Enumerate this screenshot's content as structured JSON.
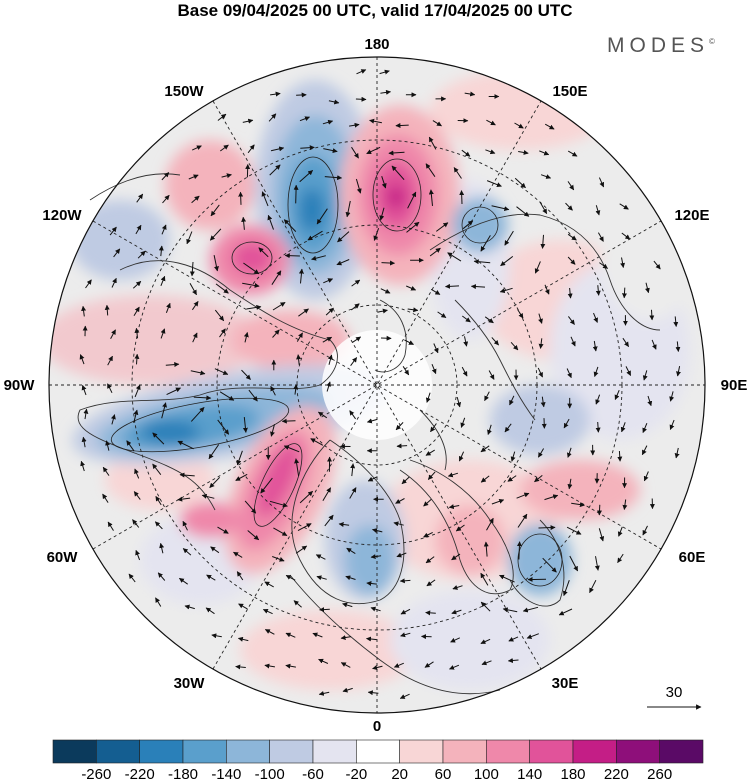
{
  "title": "Base 09/04/2025 00 UTC, valid 17/04/2025 00 UTC",
  "brand": "MODES",
  "brand_mark": "©",
  "longitude_labels": [
    "180",
    "150E",
    "120E",
    "90E",
    "60E",
    "30E",
    "0",
    "30W",
    "60W",
    "90W",
    "120W",
    "150W"
  ],
  "reference_vector": {
    "label": "30"
  },
  "colorbar": {
    "ticks": [
      "-260",
      "-220",
      "-180",
      "-140",
      "-100",
      "-60",
      "-20",
      "20",
      "60",
      "100",
      "140",
      "180",
      "220",
      "260"
    ],
    "colors": [
      "#0b3a5c",
      "#145e91",
      "#2a80b9",
      "#5a9fcc",
      "#8db6d9",
      "#bfcbe3",
      "#e4e4f0",
      "#ffffff",
      "#f8d6d6",
      "#f4b3bc",
      "#ef88aa",
      "#e1539a",
      "#c41e86",
      "#8e0f7a",
      "#5a0a66"
    ]
  },
  "colors": {
    "land_background": "#ececec",
    "contour": "#222222",
    "grid": "#222222"
  }
}
